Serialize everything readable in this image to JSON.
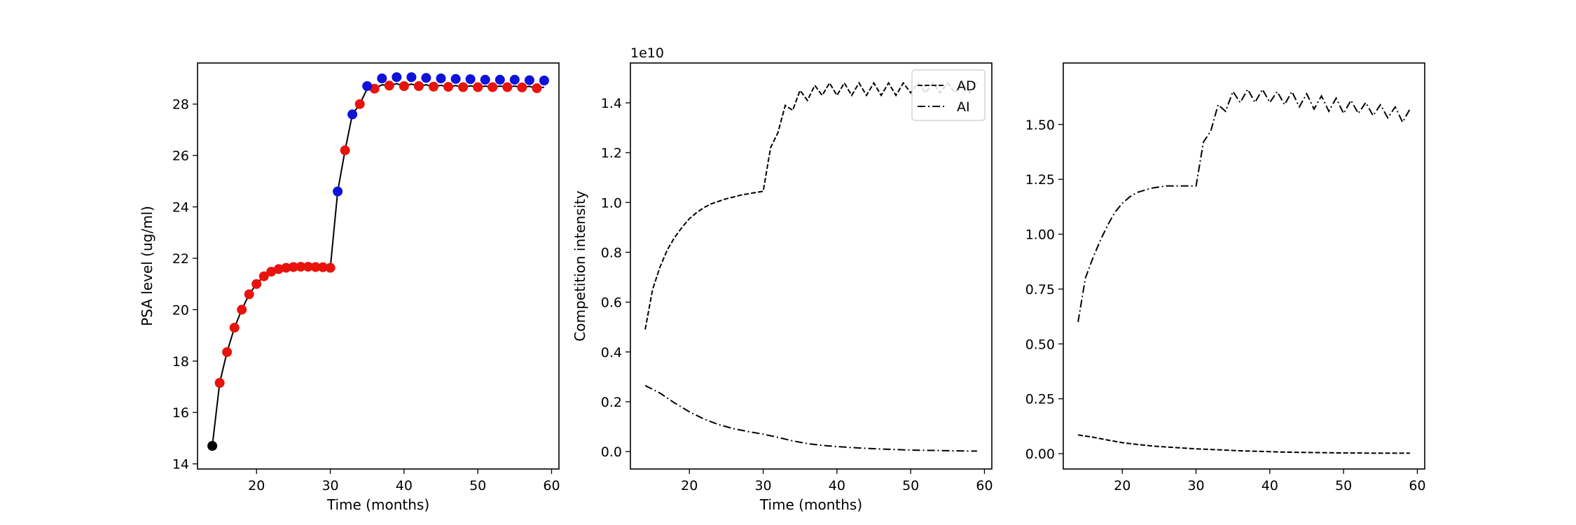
{
  "chart_data": [
    {
      "type": "scatter",
      "xlabel": "Time (months)",
      "ylabel": "PSA level (ug/ml)",
      "xlim": [
        12,
        61
      ],
      "ylim": [
        13.8,
        29.6
      ],
      "xticks": [
        20,
        30,
        40,
        50,
        60
      ],
      "yticks": [
        14,
        16,
        18,
        20,
        22,
        24,
        26,
        28
      ],
      "colors": {
        "line": "#000000",
        "initial": "#000000",
        "red": "#e8130c",
        "blue": "#0f12d9"
      },
      "series": [
        {
          "role": "trajectory-line",
          "style": "solid",
          "x": [
            14,
            15,
            16,
            17,
            18,
            19,
            20,
            21,
            22,
            23,
            24,
            25,
            26,
            27,
            28,
            29,
            30,
            31,
            32,
            33,
            34,
            35,
            36,
            37,
            38,
            39,
            40,
            41,
            42,
            43,
            44,
            45,
            46,
            47,
            48,
            49,
            50,
            51,
            52,
            53,
            54,
            55,
            56,
            57,
            58,
            59
          ],
          "y": [
            14.7,
            17.15,
            18.35,
            19.3,
            20.0,
            20.6,
            21.0,
            21.3,
            21.48,
            21.58,
            21.63,
            21.66,
            21.67,
            21.67,
            21.66,
            21.65,
            21.63,
            24.6,
            26.2,
            27.6,
            28.0,
            28.6,
            28.6,
            28.75,
            28.72,
            28.8,
            28.7,
            28.78,
            28.7,
            28.75,
            28.68,
            28.73,
            28.67,
            28.72,
            28.66,
            28.71,
            28.66,
            28.7,
            28.66,
            28.7,
            28.66,
            28.7,
            28.65,
            28.69,
            28.62,
            28.66
          ]
        },
        {
          "role": "initial-point",
          "color": "#000000",
          "x": [
            14
          ],
          "y": [
            14.7
          ]
        },
        {
          "role": "red-points",
          "color": "#e8130c",
          "x": [
            15,
            16,
            17,
            18,
            19,
            20,
            21,
            22,
            23,
            24,
            25,
            26,
            27,
            28,
            29,
            30,
            32,
            34,
            36,
            38,
            40,
            42,
            44,
            46,
            48,
            50,
            52,
            54,
            56,
            58
          ],
          "y": [
            17.15,
            18.35,
            19.3,
            20.0,
            20.6,
            21.0,
            21.3,
            21.48,
            21.58,
            21.63,
            21.66,
            21.67,
            21.67,
            21.66,
            21.65,
            21.63,
            26.2,
            28.0,
            28.6,
            28.72,
            28.7,
            28.7,
            28.68,
            28.67,
            28.66,
            28.66,
            28.66,
            28.66,
            28.65,
            28.62
          ]
        },
        {
          "role": "blue-points",
          "color": "#0f12d9",
          "x": [
            31,
            33,
            35,
            37,
            39,
            41,
            43,
            45,
            47,
            49,
            51,
            53,
            55,
            57,
            59
          ],
          "y": [
            24.6,
            27.6,
            28.7,
            29.0,
            29.05,
            29.05,
            29.02,
            29.0,
            28.98,
            28.97,
            28.95,
            28.95,
            28.95,
            28.93,
            28.92
          ]
        }
      ]
    },
    {
      "type": "line",
      "xlabel": "Time (months)",
      "ylabel": "Competition intensity",
      "offset_text": "1e10",
      "xlim": [
        12,
        61
      ],
      "ylim": [
        -0.07,
        1.56
      ],
      "xticks": [
        20,
        30,
        40,
        50,
        60
      ],
      "yticks": [
        0.0,
        0.2,
        0.4,
        0.6,
        0.8,
        1.0,
        1.2,
        1.4
      ],
      "legend": {
        "position": "top-right",
        "entries": [
          "AD",
          "AI"
        ]
      },
      "series": [
        {
          "name": "AD",
          "style": "dashed",
          "x": [
            14,
            15,
            16,
            17,
            18,
            19,
            20,
            21,
            22,
            23,
            24,
            25,
            26,
            27,
            28,
            29,
            30,
            31,
            32,
            33,
            34,
            35,
            36,
            37,
            38,
            39,
            40,
            41,
            42,
            43,
            44,
            45,
            46,
            47,
            48,
            49,
            50,
            51,
            52,
            53,
            54,
            55,
            56,
            57,
            58,
            59
          ],
          "y": [
            0.49,
            0.65,
            0.74,
            0.81,
            0.86,
            0.9,
            0.935,
            0.96,
            0.98,
            0.995,
            1.005,
            1.015,
            1.022,
            1.03,
            1.035,
            1.04,
            1.045,
            1.22,
            1.28,
            1.39,
            1.37,
            1.45,
            1.41,
            1.47,
            1.43,
            1.48,
            1.43,
            1.48,
            1.43,
            1.48,
            1.43,
            1.48,
            1.43,
            1.48,
            1.43,
            1.48,
            1.44,
            1.48,
            1.44,
            1.48,
            1.44,
            1.48,
            1.44,
            1.48,
            1.44,
            1.48
          ]
        },
        {
          "name": "AI",
          "style": "dashdot",
          "x": [
            14,
            16,
            18,
            20,
            22,
            24,
            26,
            28,
            30,
            32,
            34,
            36,
            38,
            40,
            42,
            44,
            46,
            48,
            50,
            52,
            54,
            56,
            58,
            59
          ],
          "y": [
            0.265,
            0.235,
            0.195,
            0.16,
            0.13,
            0.108,
            0.092,
            0.08,
            0.07,
            0.057,
            0.043,
            0.032,
            0.025,
            0.02,
            0.016,
            0.013,
            0.01,
            0.008,
            0.006,
            0.005,
            0.004,
            0.003,
            0.002,
            0.002
          ]
        }
      ]
    },
    {
      "type": "line",
      "xlim": [
        12,
        61
      ],
      "ylim": [
        -0.07,
        1.78
      ],
      "xticks": [
        20,
        30,
        40,
        50,
        60
      ],
      "yticks": [
        0.0,
        0.25,
        0.5,
        0.75,
        1.0,
        1.25,
        1.5
      ],
      "ytick_labels": [
        "0.00",
        "0.25",
        "0.50",
        "0.75",
        "1.00",
        "1.25",
        "1.50"
      ],
      "series": [
        {
          "style": "dashdot",
          "x": [
            14,
            15,
            16,
            17,
            18,
            19,
            20,
            21,
            22,
            23,
            24,
            25,
            26,
            27,
            28,
            29,
            30,
            31,
            32,
            33,
            34,
            35,
            36,
            37,
            38,
            39,
            40,
            41,
            42,
            43,
            44,
            45,
            46,
            47,
            48,
            49,
            50,
            51,
            52,
            53,
            54,
            55,
            56,
            57,
            58,
            59
          ],
          "y": [
            0.6,
            0.8,
            0.89,
            0.97,
            1.04,
            1.1,
            1.14,
            1.17,
            1.19,
            1.2,
            1.21,
            1.215,
            1.22,
            1.22,
            1.22,
            1.22,
            1.22,
            1.42,
            1.47,
            1.59,
            1.56,
            1.65,
            1.6,
            1.66,
            1.6,
            1.66,
            1.6,
            1.65,
            1.59,
            1.65,
            1.58,
            1.64,
            1.57,
            1.63,
            1.56,
            1.62,
            1.55,
            1.61,
            1.55,
            1.6,
            1.54,
            1.59,
            1.53,
            1.58,
            1.51,
            1.57
          ]
        },
        {
          "style": "dashed",
          "x": [
            14,
            16,
            18,
            20,
            22,
            24,
            26,
            28,
            30,
            32,
            34,
            36,
            38,
            40,
            42,
            44,
            46,
            48,
            50,
            52,
            54,
            56,
            58,
            59
          ],
          "y": [
            0.085,
            0.075,
            0.062,
            0.05,
            0.042,
            0.035,
            0.03,
            0.026,
            0.022,
            0.019,
            0.016,
            0.013,
            0.011,
            0.009,
            0.007,
            0.006,
            0.005,
            0.004,
            0.003,
            0.003,
            0.002,
            0.002,
            0.002,
            0.002
          ]
        }
      ]
    }
  ]
}
